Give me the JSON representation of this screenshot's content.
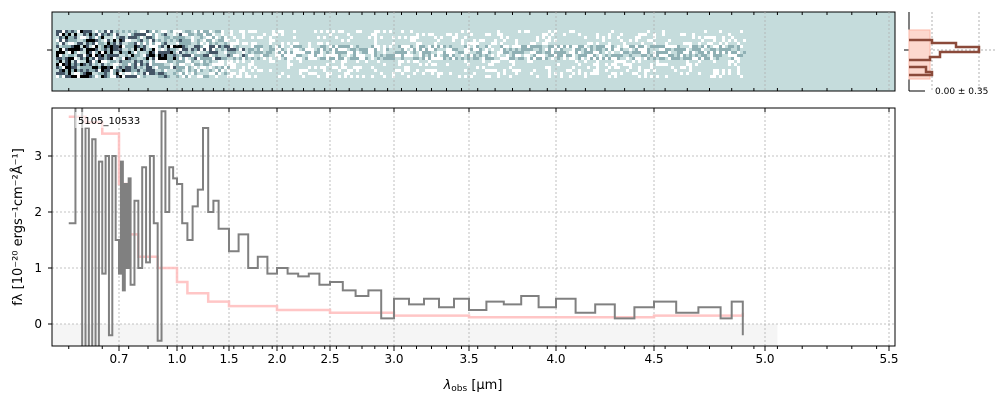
{
  "chart_data": [
    {
      "type": "heatmap",
      "description_role": "2D spectrum panel",
      "background_color": "#c5dcdc"
    },
    {
      "type": "bar",
      "role": "cross-dispersion histogram",
      "annotation": "0.00 ± 0.35",
      "colors": {
        "data": "#8b4a3a",
        "model": "#fbc9bd"
      }
    },
    {
      "type": "line",
      "xlabel": "λobs [μm]",
      "xlabel_main": "λ",
      "xlabel_sub": "obs",
      "xlabel_unit": " [μm]",
      "ylabel": "fλ [10⁻²⁰ ergs⁻¹cm⁻²Å⁻¹]",
      "xticks": [
        "0.7",
        "1.0",
        "1.5",
        "2.0",
        "2.5",
        "3.0",
        "3.5",
        "4.0",
        "4.5",
        "5.0",
        "5.5"
      ],
      "xtick_values": [
        0.7,
        1.0,
        1.5,
        2.0,
        2.5,
        3.0,
        3.5,
        4.0,
        4.5,
        5.0,
        5.5
      ],
      "yticks": [
        "0",
        "1",
        "2",
        "3"
      ],
      "ytick_values": [
        0,
        1,
        2,
        3
      ],
      "ylim": [
        -0.4,
        3.85
      ],
      "grid": true,
      "label": "5105_10533",
      "series": [
        {
          "color": "#808080",
          "x": [
            0.55,
            0.57,
            0.59,
            0.6,
            0.61,
            0.62,
            0.63,
            0.64,
            0.65,
            0.66,
            0.67,
            0.68,
            0.69,
            0.7,
            0.71,
            0.72,
            0.73,
            0.74,
            0.75,
            0.76,
            0.78,
            0.8,
            0.82,
            0.84,
            0.86,
            0.88,
            0.9,
            0.92,
            0.94,
            0.96,
            0.98,
            1.0,
            1.05,
            1.1,
            1.15,
            1.2,
            1.25,
            1.3,
            1.35,
            1.4,
            1.5,
            1.6,
            1.7,
            1.8,
            1.9,
            2.0,
            2.1,
            2.2,
            2.3,
            2.4,
            2.5,
            2.6,
            2.7,
            2.8,
            2.9,
            3.0,
            3.1,
            3.2,
            3.3,
            3.4,
            3.5,
            3.6,
            3.7,
            3.8,
            3.9,
            4.0,
            4.1,
            4.2,
            4.3,
            4.4,
            4.5,
            4.6,
            4.7,
            4.8,
            4.85,
            4.9
          ],
          "y": [
            1.8,
            4.0,
            -0.5,
            3.5,
            -1.0,
            3.3,
            -0.5,
            2.9,
            0.9,
            3.0,
            -0.2,
            3.0,
            1.5,
            0.9,
            2.9,
            0.6,
            2.5,
            1.0,
            2.6,
            0.7,
            2.2,
            1.0,
            2.8,
            1.1,
            3.0,
            1.8,
            -0.3,
            3.8,
            2.0,
            2.8,
            2.6,
            2.5,
            1.8,
            1.5,
            2.1,
            2.4,
            3.5,
            2.0,
            2.2,
            1.7,
            1.3,
            1.6,
            1.0,
            1.2,
            0.9,
            1.0,
            0.9,
            0.85,
            0.9,
            0.7,
            0.75,
            0.6,
            0.5,
            0.6,
            0.1,
            0.45,
            0.35,
            0.45,
            0.3,
            0.45,
            0.25,
            0.4,
            0.35,
            0.5,
            0.3,
            0.45,
            0.2,
            0.35,
            0.1,
            0.3,
            0.4,
            0.2,
            0.3,
            0.1,
            0.4,
            -0.2
          ]
        },
        {
          "color": "#ffbcbc",
          "x": [
            0.55,
            0.6,
            0.65,
            0.7,
            0.75,
            0.8,
            0.9,
            1.0,
            1.1,
            1.3,
            1.5,
            2.0,
            2.5,
            3.0,
            3.5,
            4.0,
            4.5,
            4.9
          ],
          "y": [
            3.7,
            3.6,
            3.4,
            2.5,
            1.6,
            1.2,
            1.0,
            0.75,
            0.55,
            0.4,
            0.32,
            0.25,
            0.2,
            0.15,
            0.12,
            0.12,
            0.15,
            0.2
          ]
        }
      ],
      "shaded_band": {
        "y": [
          -0.4,
          0
        ],
        "x": [
          0.5,
          5.05
        ],
        "color": "#f5f5f5"
      }
    }
  ]
}
